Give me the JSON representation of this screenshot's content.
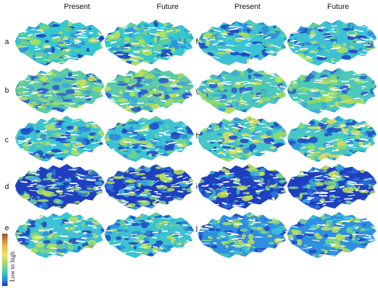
{
  "columns": {
    "left_present": "Present",
    "left_future": "Future",
    "right_present": "Present",
    "right_future": "Future"
  },
  "rows_left": [
    "a",
    "b",
    "c",
    "d",
    "e"
  ],
  "rows_right": [
    "f",
    "g",
    "h",
    "i",
    "j"
  ],
  "legend": {
    "label": "Low to high",
    "colors": [
      "#a0522d",
      "#f2e36a",
      "#37c6c6",
      "#1a2fb0"
    ]
  },
  "palettes": {
    "a": [
      "#36c6d0",
      "#6fd08a",
      "#b5e05a",
      "#2f8fe0",
      "#1e3fbf"
    ],
    "b": [
      "#5cc9a8",
      "#9fdc5e",
      "#3aa6e0",
      "#2a55d0",
      "#c7e356"
    ],
    "c": [
      "#3cc2d2",
      "#73d28c",
      "#b9e25c",
      "#2c86dc",
      "#1f48c4"
    ],
    "d": [
      "#1f3fbf",
      "#2b6fd8",
      "#3fb4dc",
      "#7fd78a",
      "#b6e35c"
    ],
    "e": [
      "#3cc2d2",
      "#7ad48c",
      "#c4e35a",
      "#2d8ade",
      "#1f46c2"
    ],
    "f": [
      "#3cc0d6",
      "#69cf96",
      "#b3e05c",
      "#2e88dc",
      "#1e44c0"
    ],
    "g": [
      "#4cc7b8",
      "#92d96a",
      "#3aa8e0",
      "#2a5ed2",
      "#c9e356"
    ],
    "h": [
      "#46c6c6",
      "#95da6a",
      "#e3dd5a",
      "#2f8fe0",
      "#1f4ac4"
    ],
    "i": [
      "#1f3fbf",
      "#2a6ad6",
      "#3ab0de",
      "#7fd78a",
      "#c3e35a"
    ],
    "j": [
      "#2f8fe0",
      "#3cc2d2",
      "#7ad48c",
      "#1f46c2",
      "#b9e25c"
    ]
  }
}
